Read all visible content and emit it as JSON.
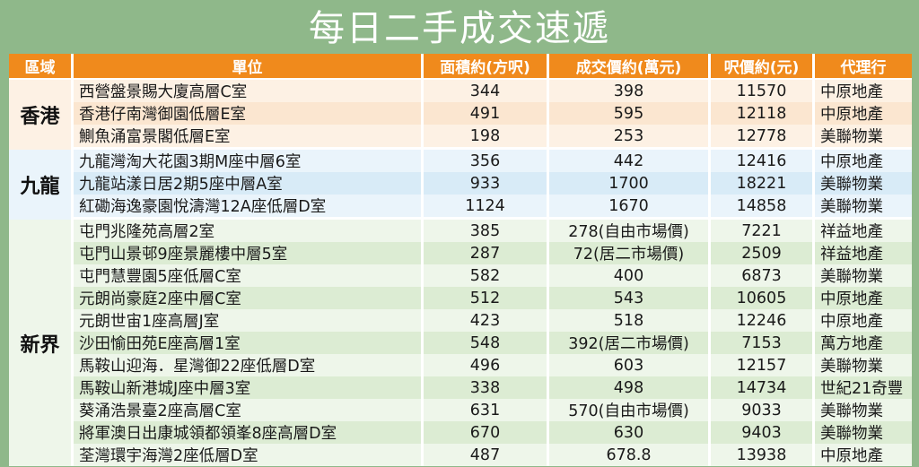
{
  "title": "每日二手成交速遞",
  "headers": {
    "region": "區域",
    "unit": "單位",
    "area": "面積約(方呎)",
    "price": "成交價約(萬元)",
    "psf": "呎價約(元)",
    "agency": "代理行"
  },
  "groups": [
    {
      "region": "香港",
      "rows": [
        {
          "unit": "西營盤景賜大廈高層C室",
          "area": "344",
          "price": "398",
          "psf": "11570",
          "agency": "中原地產"
        },
        {
          "unit": "香港仔南灣御園低層E室",
          "area": "491",
          "price": "595",
          "psf": "12118",
          "agency": "中原地產"
        },
        {
          "unit": "鰂魚涌富景閣低層E室",
          "area": "198",
          "price": "253",
          "psf": "12778",
          "agency": "美聯物業"
        }
      ]
    },
    {
      "region": "九龍",
      "rows": [
        {
          "unit": "九龍灣淘大花園3期M座中層6室",
          "area": "356",
          "price": "442",
          "psf": "12416",
          "agency": "中原地產"
        },
        {
          "unit": "九龍站漾日居2期5座中層A室",
          "area": "933",
          "price": "1700",
          "psf": "18221",
          "agency": "美聯物業"
        },
        {
          "unit": "紅磡海逸豪園悅濤灣12A座低層D室",
          "area": "1124",
          "price": "1670",
          "psf": "14858",
          "agency": "美聯物業"
        }
      ]
    },
    {
      "region": "新界",
      "rows": [
        {
          "unit": "屯門兆隆苑高層2室",
          "area": "385",
          "price": "278(自由市場價)",
          "psf": "7221",
          "agency": "祥益地產"
        },
        {
          "unit": "屯門山景邨9座景麗樓中層5室",
          "area": "287",
          "price": "72(居二市場價)",
          "psf": "2509",
          "agency": "祥益地產"
        },
        {
          "unit": "屯門慧豐園5座低層C室",
          "area": "582",
          "price": "400",
          "psf": "6873",
          "agency": "美聯物業"
        },
        {
          "unit": "元朗尚豪庭2座中層C室",
          "area": "512",
          "price": "543",
          "psf": "10605",
          "agency": "中原地產"
        },
        {
          "unit": "元朗世宙1座高層J室",
          "area": "423",
          "price": "518",
          "psf": "12246",
          "agency": "中原地產"
        },
        {
          "unit": "沙田愉田苑E座高層1室",
          "area": "548",
          "price": "392(居二市場價)",
          "psf": "7153",
          "agency": "萬方地產"
        },
        {
          "unit": "馬鞍山迎海．星灣御22座低層D室",
          "area": "496",
          "price": "603",
          "psf": "12157",
          "agency": "美聯物業"
        },
        {
          "unit": "馬鞍山新港城J座中層3室",
          "area": "338",
          "price": "498",
          "psf": "14734",
          "agency": "世紀21奇豐"
        },
        {
          "unit": "葵涌浩景臺2座高層C室",
          "area": "631",
          "price": "570(自由市場價)",
          "psf": "9033",
          "agency": "美聯物業"
        },
        {
          "unit": "將軍澳日出康城領都領峯8座高層D室",
          "area": "670",
          "price": "630",
          "psf": "9403",
          "agency": "美聯物業"
        },
        {
          "unit": "荃灣環宇海灣2座低層D室",
          "area": "487",
          "price": "678.8",
          "psf": "13938",
          "agency": "中原地產"
        }
      ]
    }
  ]
}
